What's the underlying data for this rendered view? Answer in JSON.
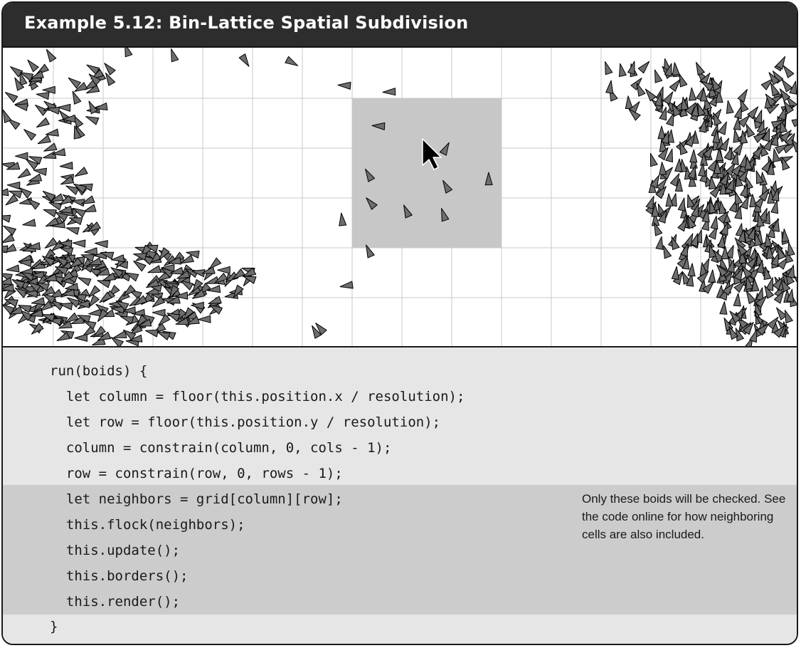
{
  "header": {
    "title": "Example 5.12: Bin-Lattice Spatial Subdivision"
  },
  "simulation": {
    "grid_color": "#c8c8c8",
    "highlight_color": "#c7c7c7",
    "boid_fill": "#6e6e6e",
    "boid_stroke": "#000000",
    "cursor_icon": "mouse-pointer-arrow"
  },
  "code": {
    "lines": [
      "run(boids) {",
      "  let column = floor(this.position.x / resolution);",
      "  let row = floor(this.position.y / resolution);",
      "  column = constrain(column, 0, cols - 1);",
      "  row = constrain(row, 0, rows - 1);",
      "  let neighbors = grid[column][row];",
      "  this.flock(neighbors);",
      "  this.update();",
      "  this.borders();",
      "  this.render();",
      "}"
    ],
    "highlight_color": "#cccccc",
    "note": "Only these boids will be checked. See the code online for how neighboring cells are also included."
  }
}
